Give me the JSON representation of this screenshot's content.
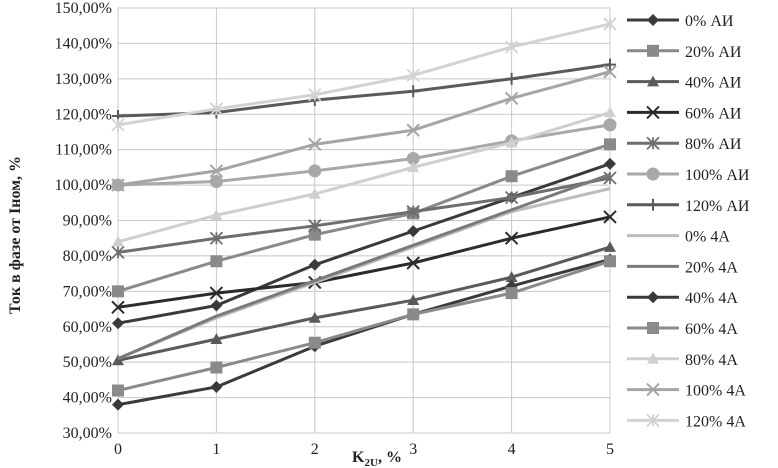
{
  "chart_data": {
    "type": "line",
    "xlabel": "K",
    "xlabel_sub": "2U",
    "xlabel_suffix": ", %",
    "ylabel": "Ток в фазе от Iном, %",
    "x": [
      0,
      1,
      2,
      3,
      4,
      5
    ],
    "xticks": [
      "0",
      "1",
      "2",
      "3",
      "4",
      "5"
    ],
    "ylim": [
      30,
      150
    ],
    "yticks": [
      "30,00%",
      "40,00%",
      "50,00%",
      "60,00%",
      "70,00%",
      "80,00%",
      "90,00%",
      "100,00%",
      "110,00%",
      "120,00%",
      "130,00%",
      "140,00%",
      "150,00%"
    ],
    "ytick_values": [
      30,
      40,
      50,
      60,
      70,
      80,
      90,
      100,
      110,
      120,
      130,
      140,
      150
    ],
    "grid": true,
    "legend_position": "right",
    "series": [
      {
        "name": "0% АИ",
        "color": "#3a3a3a",
        "marker": "diamond",
        "values": [
          61,
          66,
          77.5,
          87,
          96.5,
          106
        ]
      },
      {
        "name": "20% АИ",
        "color": "#8a8a8a",
        "marker": "square",
        "values": [
          70,
          78.5,
          86,
          92,
          102.5,
          111.5
        ]
      },
      {
        "name": "40% АИ",
        "color": "#5a5a5a",
        "marker": "triangle",
        "values": [
          50.5,
          56.5,
          62.5,
          67.5,
          74,
          82.5
        ]
      },
      {
        "name": "60% АИ",
        "color": "#2b2b2b",
        "marker": "x",
        "values": [
          65.5,
          69.5,
          72.5,
          78,
          85,
          91
        ]
      },
      {
        "name": "80% АИ",
        "color": "#6e6e6e",
        "marker": "asterisk",
        "values": [
          81,
          85,
          88.5,
          92.5,
          96.5,
          102
        ]
      },
      {
        "name": "100% АИ",
        "color": "#a8a8a8",
        "marker": "circle",
        "values": [
          100,
          101,
          104,
          107.5,
          112.5,
          117
        ]
      },
      {
        "name": "120% АИ",
        "color": "#5a5a5a",
        "marker": "plus",
        "values": [
          119.5,
          120.5,
          124,
          126.5,
          130,
          134
        ]
      },
      {
        "name": "0% 4А",
        "color": "#bdbdbd",
        "marker": "none",
        "values": [
          51,
          62.5,
          72.5,
          82.5,
          92.5,
          99
        ]
      },
      {
        "name": "20% 4А",
        "color": "#7a7a7a",
        "marker": "none",
        "values": [
          51,
          63,
          73,
          83,
          93,
          103
        ]
      },
      {
        "name": "40% 4А",
        "color": "#3a3a3a",
        "marker": "diamond",
        "values": [
          38,
          43,
          54.5,
          63.5,
          71.5,
          79
        ]
      },
      {
        "name": "60% 4А",
        "color": "#8a8a8a",
        "marker": "square",
        "values": [
          42,
          48.5,
          55.5,
          63.5,
          69.5,
          78.5
        ]
      },
      {
        "name": "80% 4А",
        "color": "#cfcfcf",
        "marker": "triangle",
        "values": [
          84,
          91.5,
          97.5,
          105,
          112,
          120.5
        ]
      },
      {
        "name": "100% 4А",
        "color": "#a5a5a5",
        "marker": "x",
        "values": [
          100,
          104,
          111.5,
          115.5,
          124.5,
          132
        ]
      },
      {
        "name": "120% 4А",
        "color": "#d2d2d2",
        "marker": "asterisk",
        "values": [
          117,
          121.5,
          125.5,
          131,
          139,
          145.5
        ]
      }
    ]
  }
}
